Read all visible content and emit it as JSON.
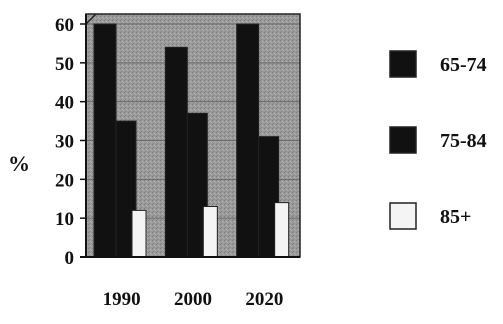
{
  "chart_data": {
    "type": "bar",
    "title": "",
    "xlabel": "",
    "ylabel": "%",
    "categories": [
      "1990",
      "2000",
      "2020"
    ],
    "series": [
      {
        "name": "65-74",
        "values": [
          60,
          54,
          60
        ],
        "color": "#111111"
      },
      {
        "name": "75-84",
        "values": [
          35,
          37,
          31
        ],
        "color": "#111111"
      },
      {
        "name": "85+",
        "values": [
          12,
          13,
          14
        ],
        "color": "#f4f4f4"
      }
    ],
    "ylim": [
      0,
      60
    ],
    "yticks": [
      "0",
      "10",
      "20",
      "30",
      "40",
      "50",
      "60"
    ],
    "grid": true,
    "plot_background": "#9a9a9a",
    "legend_position": "right"
  }
}
